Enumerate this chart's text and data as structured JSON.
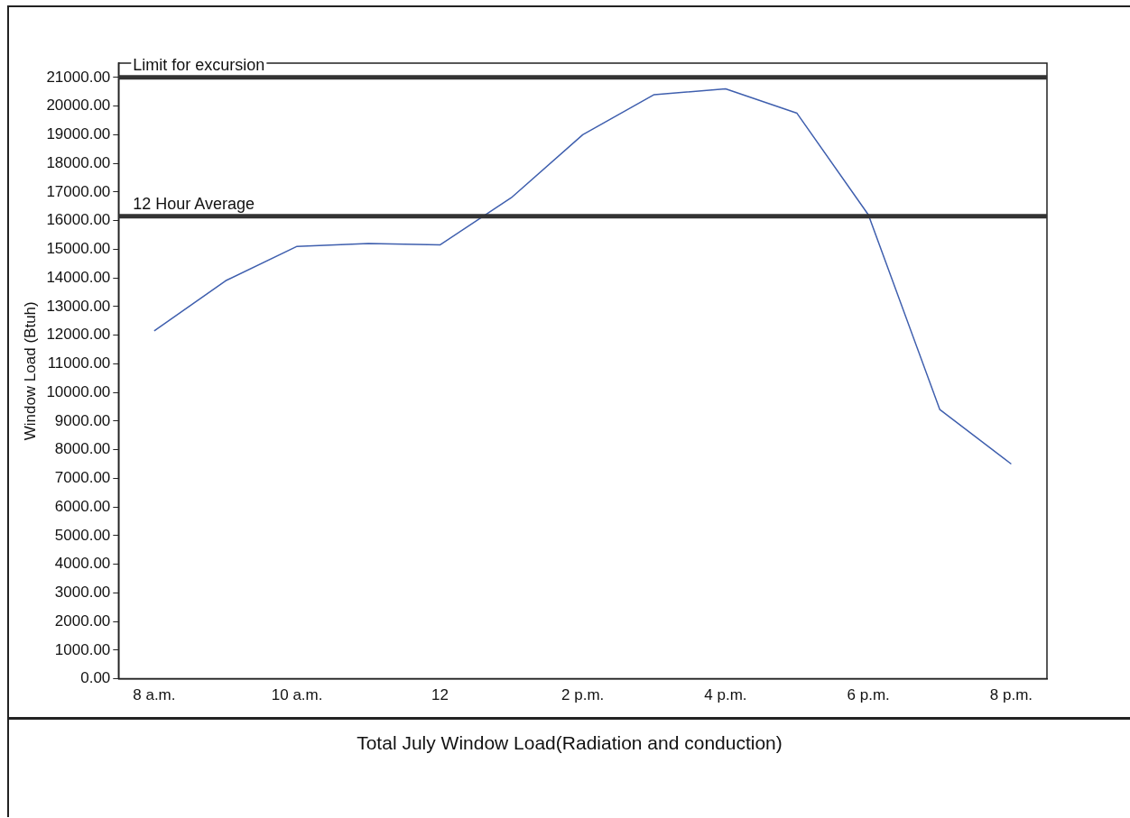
{
  "chart_data": {
    "type": "line",
    "title": "Total July Window Load(Radiation and conduction)",
    "ylabel": "Window Load (Btuh)",
    "categories": [
      "8 a.m.",
      null,
      "10 a.m.",
      null,
      "12",
      null,
      "2 p.m.",
      null,
      "4 p.m.",
      null,
      "6 p.m.",
      null,
      "8 p.m."
    ],
    "series": [
      {
        "color": "#3f5fae",
        "values": [
          12150,
          13900,
          15100,
          15200,
          15150,
          16800,
          19000,
          20400,
          20600,
          19750,
          16200,
          9400,
          7500
        ]
      }
    ],
    "ylim": [
      0,
      21500
    ],
    "yticks": [
      {
        "value": 0,
        "label": "0.00"
      },
      {
        "value": 1000,
        "label": "1000.00"
      },
      {
        "value": 2000,
        "label": "2000.00"
      },
      {
        "value": 3000,
        "label": "3000.00"
      },
      {
        "value": 4000,
        "label": "4000.00"
      },
      {
        "value": 5000,
        "label": "5000.00"
      },
      {
        "value": 6000,
        "label": "6000.00"
      },
      {
        "value": 7000,
        "label": "7000.00"
      },
      {
        "value": 8000,
        "label": "8000.00"
      },
      {
        "value": 9000,
        "label": "9000.00"
      },
      {
        "value": 10000,
        "label": "10000.00"
      },
      {
        "value": 11000,
        "label": "11000.00"
      },
      {
        "value": 12000,
        "label": "12000.00"
      },
      {
        "value": 13000,
        "label": "13000.00"
      },
      {
        "value": 14000,
        "label": "14000.00"
      },
      {
        "value": 15000,
        "label": "15000.00"
      },
      {
        "value": 16000,
        "label": "16000.00"
      },
      {
        "value": 17000,
        "label": "17000.00"
      },
      {
        "value": 18000,
        "label": "18000.00"
      },
      {
        "value": 19000,
        "label": "19000.00"
      },
      {
        "value": 20000,
        "label": "20000.00"
      },
      {
        "value": 21000,
        "label": "21000.00"
      }
    ],
    "ref_lines": [
      {
        "axis": "y",
        "value": 21000,
        "label": "Limit for excursion",
        "color": "#333333"
      },
      {
        "axis": "y",
        "value": 16150,
        "label": "12 Hour Average",
        "color": "#333333"
      }
    ],
    "grid": false,
    "legend": false,
    "marker": "none",
    "line_style": "solid"
  }
}
